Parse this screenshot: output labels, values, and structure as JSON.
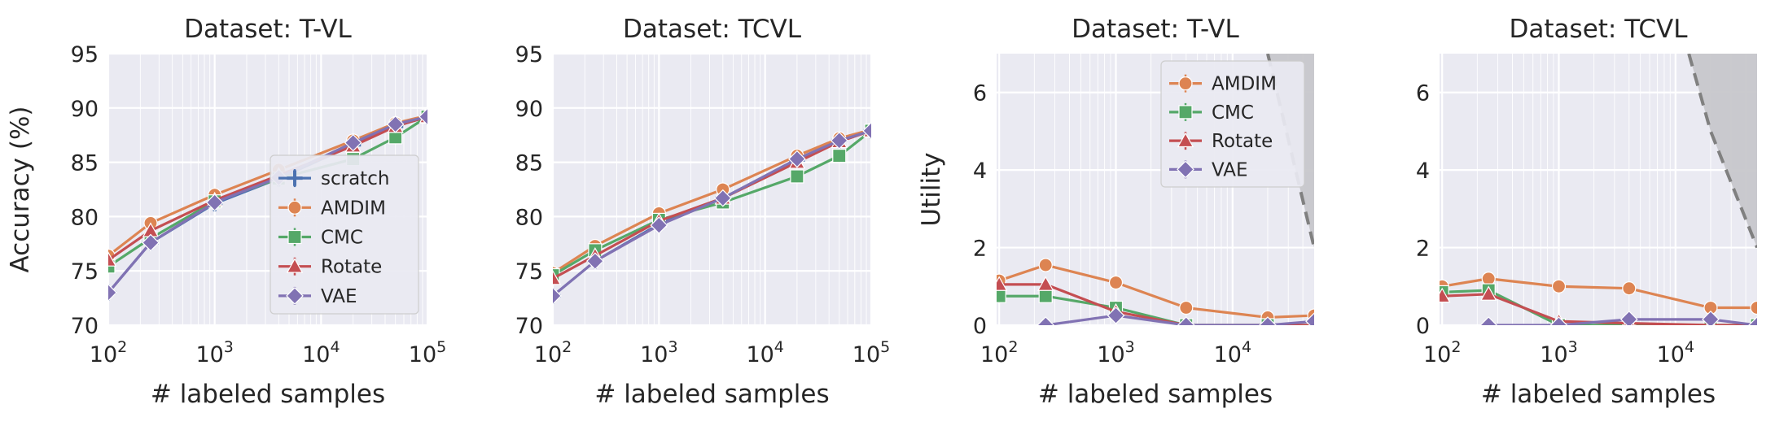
{
  "colors": {
    "scratch": "#4C72B0",
    "AMDIM": "#DD8452",
    "CMC": "#55A868",
    "Rotate": "#C44E52",
    "VAE": "#8172B3",
    "background": "#EAEAF2",
    "shade": "#C7C7CB",
    "boundary": "#808080"
  },
  "chart_data": [
    {
      "type": "line",
      "title": "Dataset: T-VL",
      "xlabel": "# labeled samples",
      "ylabel": "Accuracy (%)",
      "xscale": "log",
      "xlim": [
        100,
        100000
      ],
      "ylim": [
        70,
        95
      ],
      "yticks": [
        "70",
        "75",
        "80",
        "85",
        "90",
        "95"
      ],
      "legend": "lower right",
      "grid": true,
      "series": [
        {
          "name": "scratch",
          "marker": "plus",
          "x": [
            100,
            250,
            1000,
            4000,
            20000,
            50000,
            100000
          ],
          "y": [
            73.0,
            77.6,
            81.2,
            83.5,
            86.6,
            88.3,
            89.2
          ]
        },
        {
          "name": "AMDIM",
          "marker": "circle",
          "x": [
            100,
            250,
            1000,
            4000,
            20000,
            50000,
            100000
          ],
          "y": [
            76.4,
            79.4,
            82.0,
            84.3,
            87.0,
            88.6,
            89.3
          ]
        },
        {
          "name": "CMC",
          "marker": "square",
          "x": [
            100,
            250,
            1000,
            4000,
            20000,
            50000,
            100000
          ],
          "y": [
            75.4,
            78.0,
            81.4,
            83.5,
            85.3,
            87.3,
            89.2
          ]
        },
        {
          "name": "Rotate",
          "marker": "triangle",
          "x": [
            100,
            250,
            1000,
            4000,
            20000,
            50000,
            100000
          ],
          "y": [
            76.0,
            78.7,
            81.5,
            83.8,
            86.5,
            88.3,
            89.2
          ]
        },
        {
          "name": "VAE",
          "marker": "diamond",
          "x": [
            100,
            250,
            1000,
            4000,
            20000,
            50000,
            100000
          ],
          "y": [
            73.0,
            77.6,
            81.3,
            83.6,
            86.8,
            88.5,
            89.2
          ]
        }
      ]
    },
    {
      "type": "line",
      "title": "Dataset: TCVL",
      "xlabel": "# labeled samples",
      "ylabel": "",
      "xscale": "log",
      "xlim": [
        100,
        100000
      ],
      "ylim": [
        70,
        95
      ],
      "yticks": [
        "70",
        "75",
        "80",
        "85",
        "90",
        "95"
      ],
      "grid": true,
      "series": [
        {
          "name": "scratch",
          "marker": "plus",
          "x": [
            100,
            250,
            1000,
            4000,
            20000,
            50000,
            100000
          ],
          "y": [
            72.7,
            75.9,
            79.3,
            81.7,
            85.2,
            87.0,
            87.9
          ]
        },
        {
          "name": "AMDIM",
          "marker": "circle",
          "x": [
            100,
            250,
            1000,
            4000,
            20000,
            50000,
            100000
          ],
          "y": [
            74.8,
            77.3,
            80.3,
            82.5,
            85.6,
            87.2,
            88.0
          ]
        },
        {
          "name": "CMC",
          "marker": "square",
          "x": [
            100,
            250,
            1000,
            4000,
            20000,
            50000,
            100000
          ],
          "y": [
            74.6,
            76.9,
            79.7,
            81.3,
            83.7,
            85.6,
            87.9
          ]
        },
        {
          "name": "Rotate",
          "marker": "triangle",
          "x": [
            100,
            250,
            1000,
            4000,
            20000,
            50000,
            100000
          ],
          "y": [
            74.3,
            76.4,
            79.6,
            81.7,
            85.0,
            86.9,
            87.9
          ]
        },
        {
          "name": "VAE",
          "marker": "diamond",
          "x": [
            100,
            250,
            1000,
            4000,
            20000,
            50000,
            100000
          ],
          "y": [
            72.7,
            75.9,
            79.2,
            81.7,
            85.3,
            87.0,
            87.9
          ]
        }
      ]
    },
    {
      "type": "line",
      "title": "Dataset: T-VL",
      "xlabel": "# labeled samples",
      "ylabel": "Utility",
      "xscale": "log",
      "xlim": [
        95,
        50000
      ],
      "ylim": [
        0,
        7
      ],
      "yticks": [
        "0",
        "2",
        "4",
        "6"
      ],
      "legend": "upper right",
      "grid": true,
      "region": {
        "x": [
          20000,
          50000
        ],
        "y": [
          7,
          2
        ]
      },
      "series": [
        {
          "name": "AMDIM",
          "marker": "circle",
          "x": [
            100,
            250,
            1000,
            4000,
            20000,
            50000
          ],
          "y": [
            1.15,
            1.55,
            1.1,
            0.45,
            0.2,
            0.25
          ]
        },
        {
          "name": "CMC",
          "marker": "square",
          "x": [
            100,
            250,
            1000,
            4000,
            20000,
            50000
          ],
          "y": [
            0.75,
            0.75,
            0.45,
            0.0,
            0.0,
            0.0
          ]
        },
        {
          "name": "Rotate",
          "marker": "triangle",
          "x": [
            100,
            250,
            1000,
            4000,
            20000,
            50000
          ],
          "y": [
            1.05,
            1.05,
            0.35,
            0.0,
            0.0,
            0.0
          ]
        },
        {
          "name": "VAE",
          "marker": "diamond",
          "x": [
            250,
            1000,
            4000,
            20000,
            50000
          ],
          "y": [
            0.0,
            0.25,
            0.0,
            0.0,
            0.1
          ]
        }
      ]
    },
    {
      "type": "line",
      "title": "Dataset: TCVL",
      "xlabel": "# labeled samples",
      "ylabel": "",
      "xscale": "log",
      "xlim": [
        95,
        50000
      ],
      "ylim": [
        0,
        7
      ],
      "yticks": [
        "0",
        "2",
        "4",
        "6"
      ],
      "grid": true,
      "region": {
        "x": [
          13000,
          20000,
          50000
        ],
        "y": [
          7,
          5,
          2
        ]
      },
      "series": [
        {
          "name": "AMDIM",
          "marker": "circle",
          "x": [
            100,
            250,
            1000,
            4000,
            20000,
            50000
          ],
          "y": [
            1.0,
            1.2,
            1.0,
            0.95,
            0.45,
            0.45
          ]
        },
        {
          "name": "CMC",
          "marker": "square",
          "x": [
            100,
            250,
            1000,
            4000,
            20000,
            50000
          ],
          "y": [
            0.85,
            0.9,
            0.0,
            0.0,
            0.0,
            0.0
          ]
        },
        {
          "name": "Rotate",
          "marker": "triangle",
          "x": [
            100,
            250,
            1000,
            4000,
            20000,
            50000
          ],
          "y": [
            0.75,
            0.8,
            0.1,
            0.05,
            0.0,
            0.0
          ]
        },
        {
          "name": "VAE",
          "marker": "diamond",
          "x": [
            250,
            1000,
            4000,
            20000,
            50000
          ],
          "y": [
            0.0,
            0.0,
            0.15,
            0.15,
            0.0
          ]
        }
      ]
    }
  ]
}
